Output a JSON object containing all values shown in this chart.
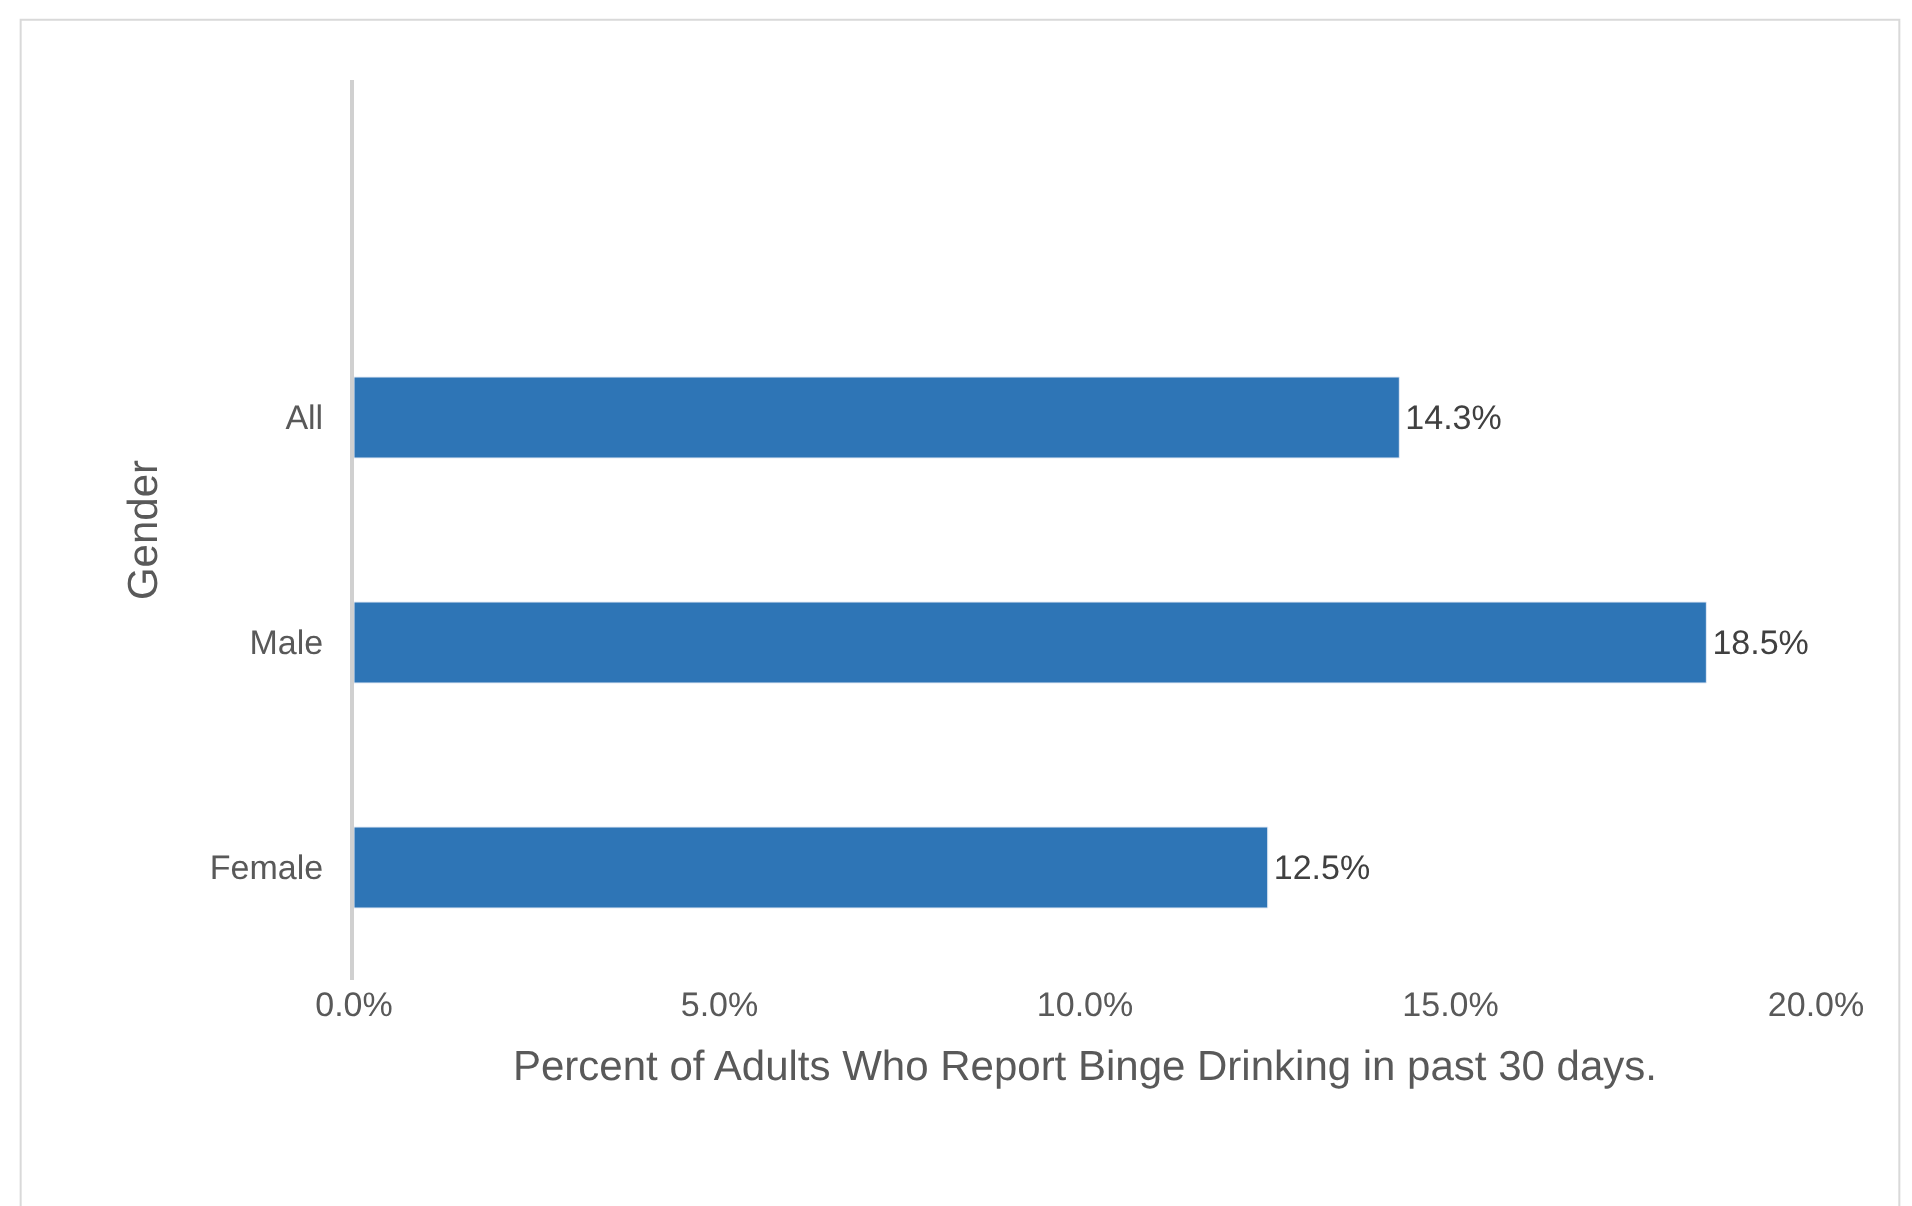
{
  "chart_data": {
    "type": "bar",
    "orientation": "horizontal",
    "categories": [
      "All",
      "Male",
      "Female"
    ],
    "values": [
      14.3,
      18.5,
      12.5
    ],
    "value_labels": [
      "14.3%",
      "18.5%",
      "12.5%"
    ],
    "color": "#2e75b6",
    "xlabel": "Percent of Adults Who Report Binge Drinking in past 30 days.",
    "ylabel": "Gender",
    "xlim": [
      0,
      20
    ],
    "xticks": [
      {
        "value": 0,
        "label": "0.0%"
      },
      {
        "value": 5,
        "label": "5.0%"
      },
      {
        "value": 10,
        "label": "10.0%"
      },
      {
        "value": 15,
        "label": "15.0%"
      },
      {
        "value": 20,
        "label": "20.0%"
      }
    ],
    "legend": false
  }
}
